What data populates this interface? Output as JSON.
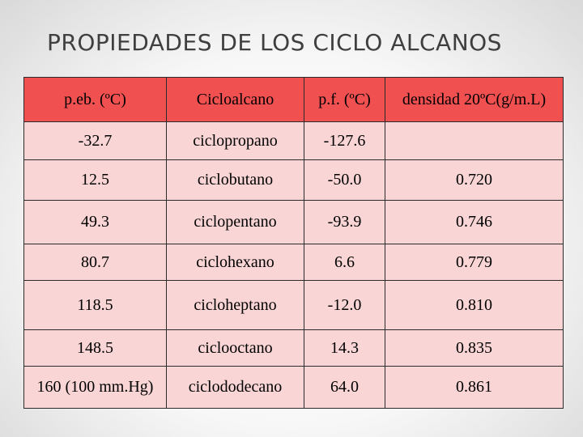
{
  "slide": {
    "title": "PROPIEDADES DE LOS CICLO ALCANOS"
  },
  "colors": {
    "header_fill": "#f05050",
    "row_fill": "#f9d5d5",
    "border": "#2b2b2b"
  },
  "table": {
    "headers": [
      "p.eb. (ºC)",
      "Cicloalcano",
      "p.f. (ºC)",
      "densidad 20ºC(g/m.L)"
    ],
    "rows": [
      [
        "-32.7",
        "ciclopropano",
        "-127.6",
        ""
      ],
      [
        "12.5",
        "ciclobutano",
        "-50.0",
        "0.720"
      ],
      [
        "49.3",
        "ciclopentano",
        "-93.9",
        "0.746"
      ],
      [
        "80.7",
        "ciclohexano",
        "6.6",
        "0.779"
      ],
      [
        "118.5",
        "cicloheptano",
        "-12.0",
        "0.810"
      ],
      [
        "148.5",
        "ciclooctano",
        "14.3",
        "0.835"
      ],
      [
        "160 (100 mm.Hg)",
        "ciclododecano",
        "64.0",
        "0.861"
      ]
    ]
  }
}
